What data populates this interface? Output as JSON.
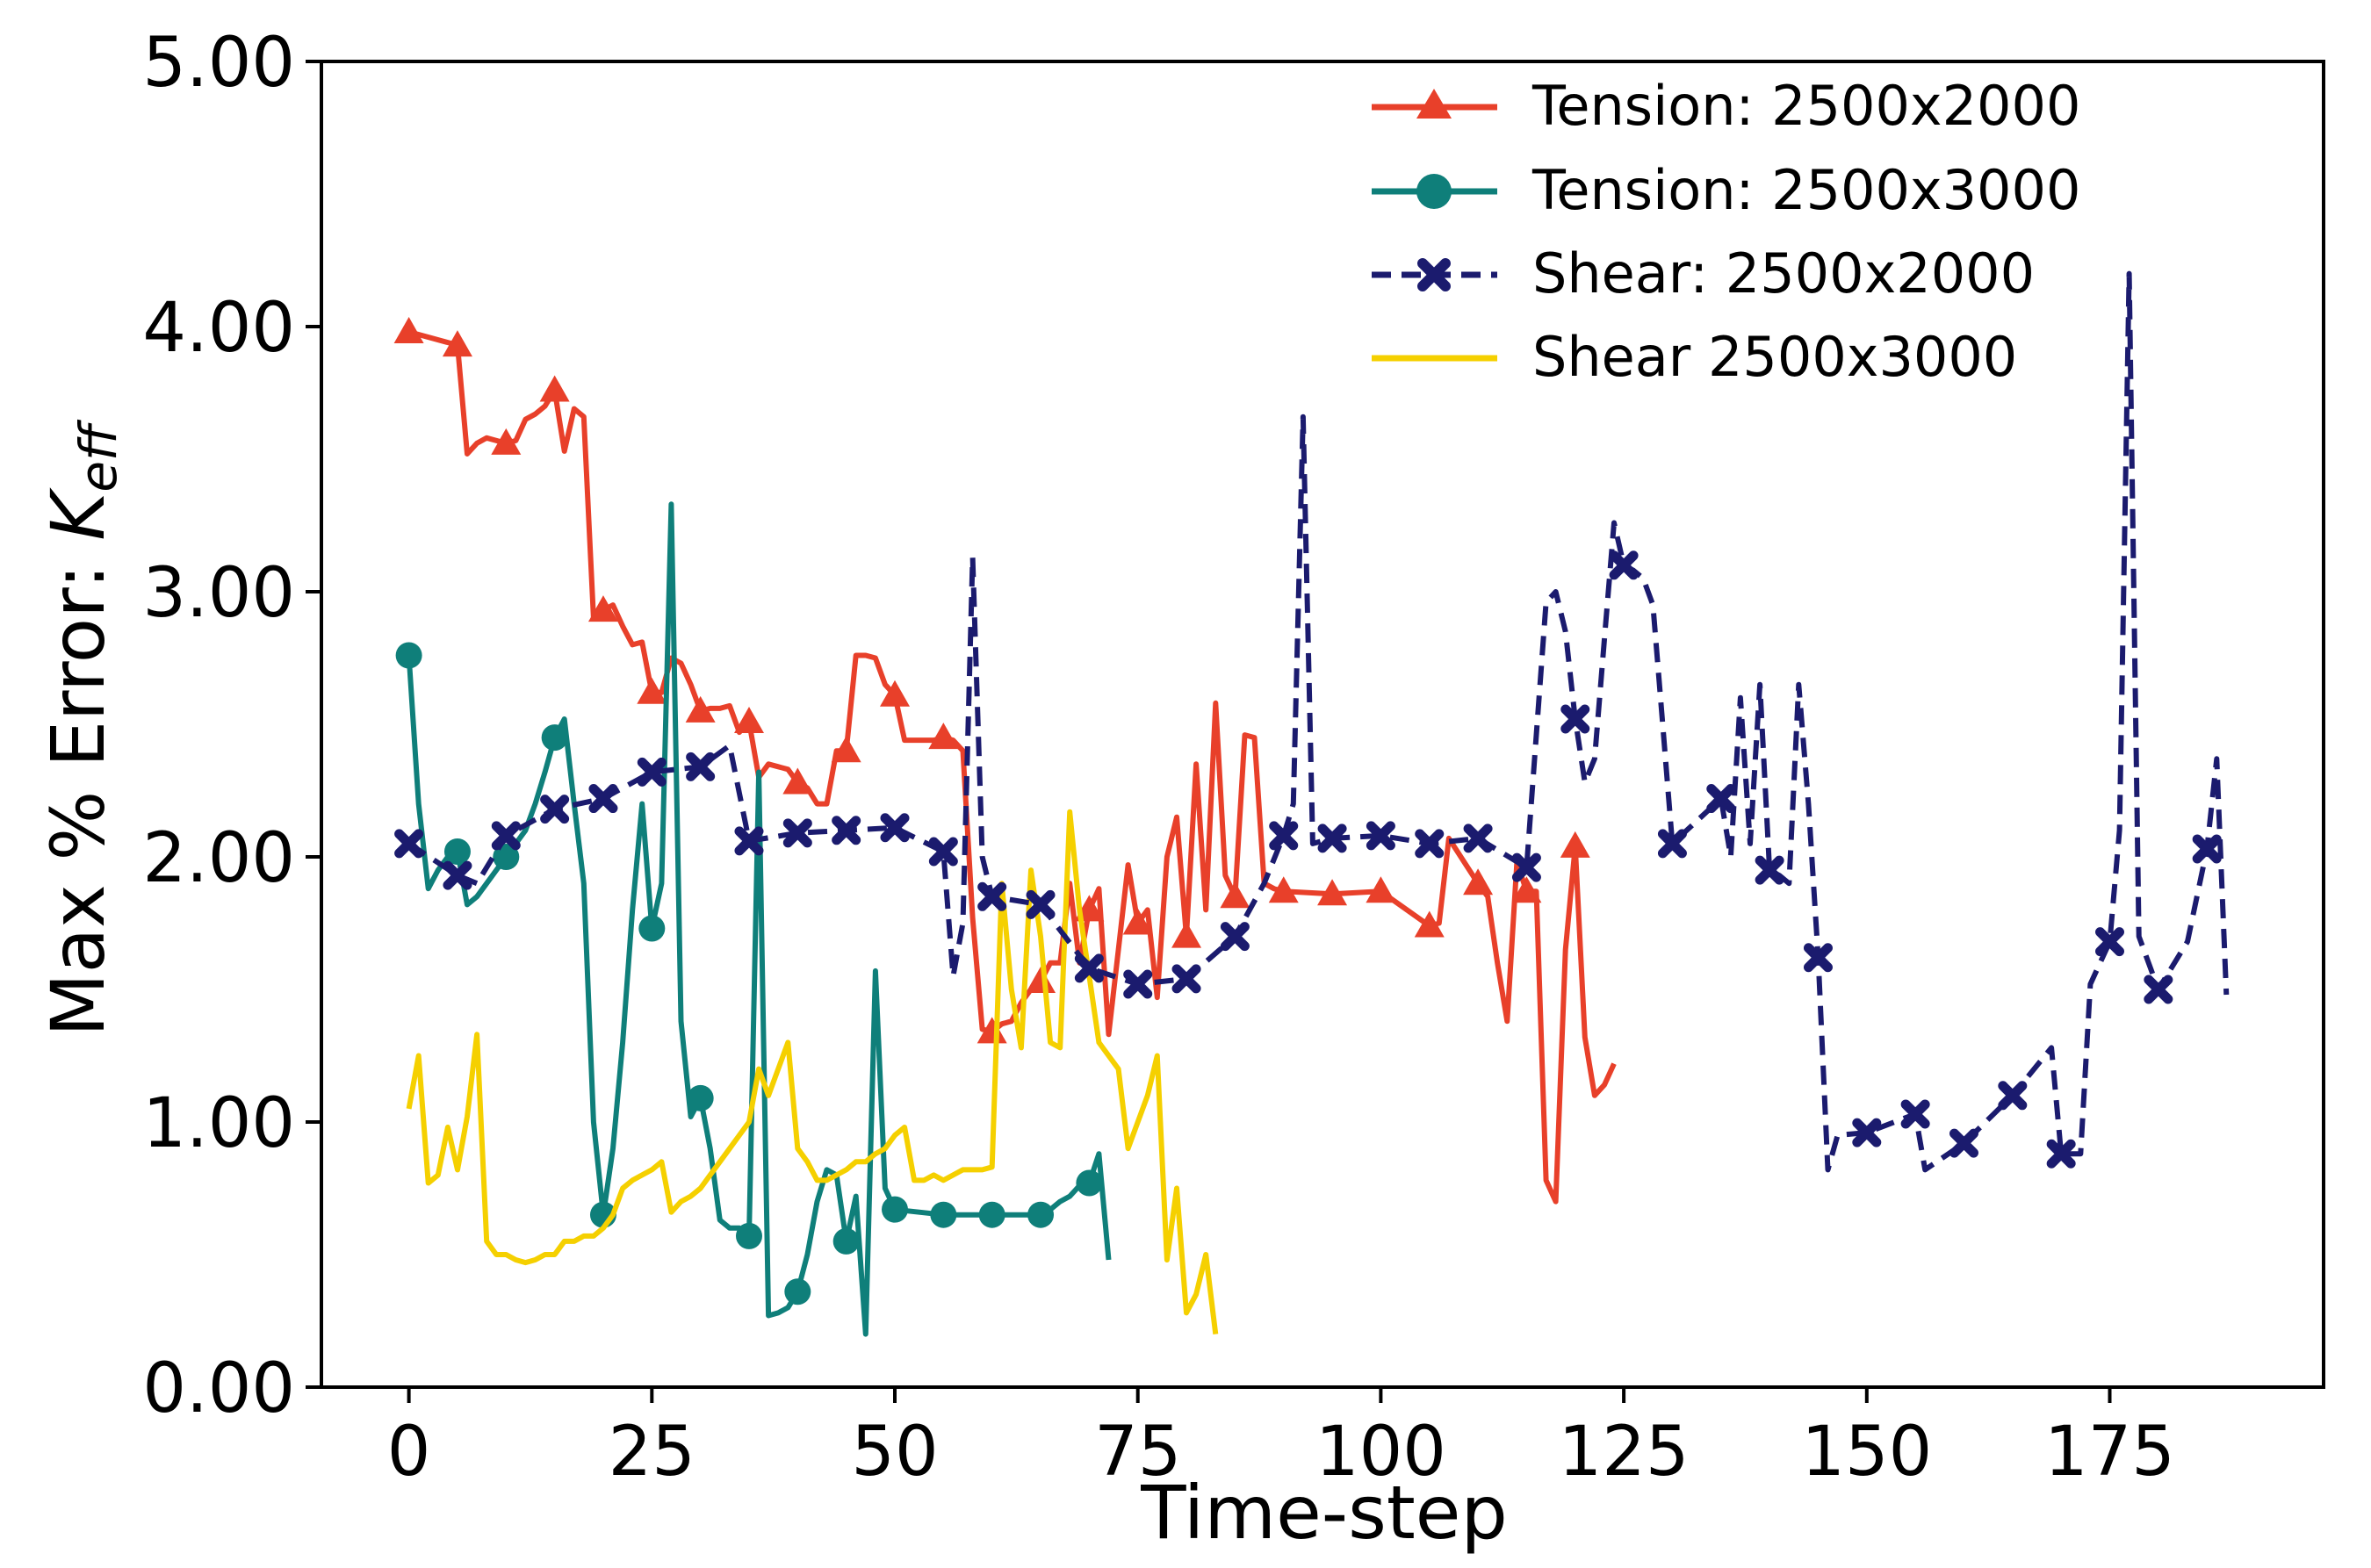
{
  "chart_data": {
    "type": "line",
    "title": "",
    "xlabel": "Time-step",
    "ylabel_main": "Max % Error: ",
    "ylabel_symbol": "K",
    "ylabel_subscript": "eff",
    "xlim": [
      -9,
      197
    ],
    "ylim": [
      0,
      5
    ],
    "xticks": [
      0,
      25,
      50,
      75,
      100,
      125,
      150,
      175
    ],
    "xtick_labels": [
      "0",
      "25",
      "50",
      "75",
      "100",
      "125",
      "150",
      "175"
    ],
    "yticks": [
      0,
      1,
      2,
      3,
      4,
      5
    ],
    "ytick_labels": [
      "0.00",
      "1.00",
      "2.00",
      "3.00",
      "4.00",
      "5.00"
    ],
    "grid": false,
    "legend_position": "top-right",
    "series": [
      {
        "name": "Tension: 2500x2000",
        "color": "#e8402a",
        "marker": "triangle",
        "dashed": false,
        "x": [
          0,
          5,
          6,
          7,
          8,
          10,
          11,
          12,
          13,
          14,
          15,
          16,
          17,
          18,
          19,
          20,
          21,
          22,
          23,
          24,
          25,
          26,
          27,
          28,
          29,
          30,
          31,
          32,
          33,
          34,
          35,
          36,
          37,
          38,
          39,
          40,
          41,
          42,
          43,
          44,
          45,
          46,
          47,
          48,
          49,
          50,
          51,
          52,
          53,
          54,
          55,
          56,
          57,
          58,
          59,
          60,
          61,
          62,
          63,
          64,
          65,
          66,
          67,
          68,
          69,
          70,
          71,
          72,
          73,
          74,
          75,
          76,
          77,
          78,
          79,
          80,
          81,
          82,
          83,
          84,
          85,
          86,
          87,
          88,
          89,
          90,
          95,
          100,
          105,
          106,
          107,
          110,
          111,
          112,
          113,
          114,
          115,
          116,
          117,
          118,
          119,
          120,
          121,
          122,
          123,
          124
        ],
        "y": [
          3.98,
          3.93,
          3.52,
          3.56,
          3.58,
          3.56,
          3.57,
          3.65,
          3.67,
          3.7,
          3.76,
          3.53,
          3.69,
          3.66,
          2.9,
          2.93,
          2.95,
          2.87,
          2.8,
          2.81,
          2.62,
          2.62,
          2.75,
          2.73,
          2.65,
          2.55,
          2.56,
          2.56,
          2.57,
          2.47,
          2.51,
          2.3,
          2.35,
          2.34,
          2.33,
          2.28,
          2.26,
          2.2,
          2.2,
          2.4,
          2.4,
          2.76,
          2.76,
          2.75,
          2.65,
          2.61,
          2.44,
          2.44,
          2.44,
          2.44,
          2.45,
          2.44,
          2.4,
          1.77,
          1.35,
          1.34,
          1.37,
          1.38,
          1.45,
          1.5,
          1.53,
          1.6,
          1.6,
          1.9,
          1.6,
          1.8,
          1.88,
          1.33,
          1.65,
          1.97,
          1.75,
          1.8,
          1.47,
          2.0,
          2.15,
          1.7,
          2.35,
          1.8,
          2.58,
          1.93,
          1.85,
          2.46,
          2.45,
          1.9,
          1.88,
          1.87,
          1.86,
          1.87,
          1.74,
          1.75,
          2.07,
          1.9,
          1.85,
          1.6,
          1.38,
          1.98,
          1.87,
          1.87,
          0.78,
          0.7,
          1.65,
          2.04,
          1.32,
          1.1,
          1.14,
          1.22
        ],
        "markers_x": [
          0,
          5,
          10,
          15,
          20,
          25,
          30,
          35,
          40,
          45,
          50,
          55,
          60,
          65,
          70,
          75,
          80,
          85,
          90,
          95,
          100,
          105,
          110,
          115,
          120
        ]
      },
      {
        "name": "Tension: 2500x3000",
        "color": "#0f7f7a",
        "marker": "circle",
        "dashed": false,
        "x": [
          0,
          1,
          2,
          3,
          4,
          5,
          6,
          7,
          8,
          9,
          10,
          11,
          12,
          13,
          14,
          15,
          16,
          17,
          18,
          19,
          20,
          21,
          22,
          23,
          24,
          25,
          26,
          27,
          28,
          29,
          30,
          31,
          32,
          33,
          34,
          35,
          36,
          37,
          38,
          39,
          40,
          41,
          42,
          43,
          44,
          45,
          46,
          47,
          48,
          49,
          50,
          55,
          60,
          65,
          66,
          67,
          68,
          69,
          70,
          71,
          72
        ],
        "y": [
          2.76,
          2.2,
          1.88,
          1.95,
          2.0,
          2.02,
          1.82,
          1.85,
          1.9,
          1.95,
          2.0,
          2.05,
          2.1,
          2.2,
          2.32,
          2.45,
          2.52,
          2.2,
          1.9,
          1.0,
          0.65,
          0.9,
          1.3,
          1.8,
          2.2,
          1.73,
          1.9,
          3.33,
          1.38,
          1.02,
          1.09,
          0.9,
          0.63,
          0.6,
          0.6,
          0.57,
          2.32,
          0.27,
          0.28,
          0.3,
          0.36,
          0.5,
          0.7,
          0.82,
          0.8,
          0.55,
          0.72,
          0.2,
          1.57,
          0.75,
          0.67,
          0.65,
          0.65,
          0.65,
          0.67,
          0.7,
          0.72,
          0.76,
          0.77,
          0.88,
          0.48
        ],
        "markers_x": [
          0,
          5,
          10,
          15,
          20,
          25,
          30,
          35,
          40,
          45,
          50,
          55,
          60,
          65,
          70
        ]
      },
      {
        "name": "Shear: 2500x2000",
        "color": "#1b1b6e",
        "marker": "x",
        "dashed": true,
        "x": [
          0,
          5,
          7,
          10,
          15,
          20,
          25,
          30,
          33,
          35,
          40,
          45,
          50,
          55,
          56,
          57,
          58,
          59,
          60,
          65,
          70,
          75,
          80,
          85,
          88,
          90,
          91,
          92,
          93,
          95,
          100,
          105,
          110,
          115,
          117,
          118,
          119,
          120,
          121,
          122,
          123,
          124,
          125,
          126,
          127,
          128,
          129,
          130,
          135,
          136,
          137,
          138,
          139,
          140,
          141,
          142,
          143,
          144,
          145,
          146,
          147,
          150,
          155,
          156,
          160,
          165,
          169,
          170,
          172,
          173,
          175,
          176,
          177,
          178,
          180,
          183,
          185,
          186,
          187
        ],
        "y": [
          2.05,
          1.93,
          1.9,
          2.08,
          2.18,
          2.22,
          2.32,
          2.34,
          2.42,
          2.06,
          2.09,
          2.1,
          2.11,
          2.02,
          1.55,
          1.75,
          3.13,
          2.0,
          1.85,
          1.82,
          1.58,
          1.52,
          1.54,
          1.7,
          1.9,
          2.08,
          2.2,
          3.66,
          2.05,
          2.07,
          2.08,
          2.05,
          2.07,
          1.96,
          2.96,
          3.0,
          2.85,
          2.52,
          2.28,
          2.37,
          2.82,
          3.26,
          3.1,
          3.08,
          3.05,
          2.95,
          2.5,
          2.05,
          2.22,
          2.0,
          2.6,
          2.05,
          2.65,
          1.95,
          1.93,
          1.9,
          2.65,
          2.2,
          1.62,
          0.82,
          0.95,
          0.96,
          1.03,
          0.82,
          0.92,
          1.1,
          1.28,
          0.88,
          0.88,
          1.52,
          1.68,
          2.1,
          4.2,
          1.7,
          1.5,
          1.68,
          2.03,
          2.37,
          1.48
        ],
        "markers_x": [
          0,
          5,
          10,
          15,
          20,
          25,
          30,
          35,
          40,
          45,
          50,
          55,
          60,
          65,
          70,
          75,
          80,
          85,
          90,
          95,
          100,
          105,
          110,
          115,
          120,
          125,
          130,
          135,
          140,
          145,
          150,
          155,
          160,
          165,
          170,
          175,
          180,
          185
        ]
      },
      {
        "name": "Shear 2500x3000",
        "color": "#f5d000",
        "marker": "none",
        "dashed": false,
        "x": [
          0,
          1,
          2,
          3,
          4,
          5,
          6,
          7,
          8,
          9,
          10,
          11,
          12,
          13,
          14,
          15,
          16,
          17,
          18,
          19,
          20,
          21,
          22,
          23,
          24,
          25,
          26,
          27,
          28,
          29,
          30,
          31,
          32,
          33,
          34,
          35,
          36,
          37,
          38,
          39,
          40,
          41,
          42,
          43,
          44,
          45,
          46,
          47,
          48,
          49,
          50,
          51,
          52,
          53,
          54,
          55,
          56,
          57,
          58,
          59,
          60,
          61,
          62,
          63,
          64,
          65,
          66,
          67,
          68,
          69,
          70,
          71,
          72,
          73,
          74,
          75,
          76,
          77,
          78,
          79,
          80,
          81,
          82,
          83
        ],
        "y": [
          1.05,
          1.25,
          0.77,
          0.8,
          0.98,
          0.82,
          1.02,
          1.33,
          0.55,
          0.5,
          0.5,
          0.48,
          0.47,
          0.48,
          0.5,
          0.5,
          0.55,
          0.55,
          0.57,
          0.57,
          0.6,
          0.65,
          0.75,
          0.78,
          0.8,
          0.82,
          0.85,
          0.66,
          0.7,
          0.72,
          0.75,
          0.8,
          0.85,
          0.9,
          0.95,
          1.0,
          1.2,
          1.1,
          1.2,
          1.3,
          0.9,
          0.85,
          0.78,
          0.78,
          0.8,
          0.82,
          0.85,
          0.85,
          0.88,
          0.9,
          0.95,
          0.98,
          0.78,
          0.78,
          0.8,
          0.78,
          0.8,
          0.82,
          0.82,
          0.82,
          0.83,
          1.9,
          1.5,
          1.28,
          1.95,
          1.7,
          1.3,
          1.28,
          2.17,
          1.8,
          1.55,
          1.3,
          1.25,
          1.2,
          0.9,
          1.0,
          1.1,
          1.25,
          0.48,
          0.75,
          0.28,
          0.35,
          0.5,
          0.2
        ]
      }
    ]
  }
}
